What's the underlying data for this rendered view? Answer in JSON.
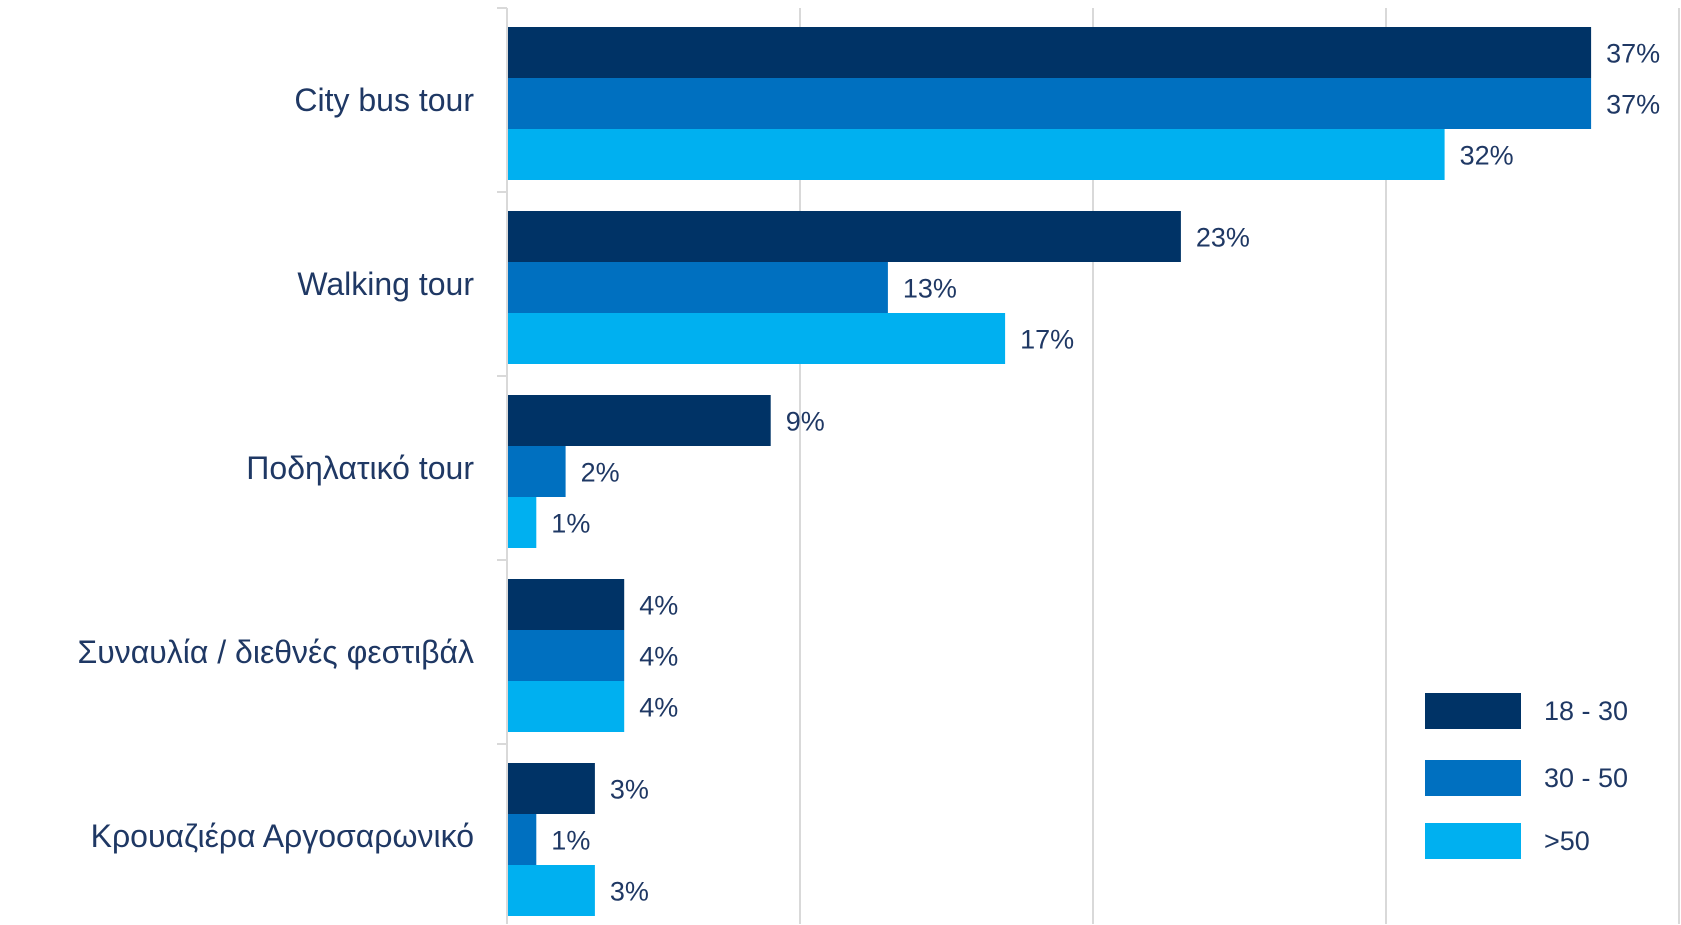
{
  "chart_data": {
    "type": "bar",
    "orientation": "horizontal",
    "categories": [
      "City bus tour",
      "Walking tour",
      "Ποδηλατικό tour",
      "Συναυλία / διεθνές φεστιβάλ",
      "Κρουαζιέρα Αργοσαρωνικό"
    ],
    "series": [
      {
        "name": "18 - 30",
        "color": "#003366",
        "values": [
          37,
          23,
          9,
          4,
          3
        ],
        "labels": [
          "37%",
          "23%",
          "9%",
          "4%",
          "3%"
        ]
      },
      {
        "name": "30 - 50",
        "color": "#0070c0",
        "values": [
          37,
          13,
          2,
          4,
          1
        ],
        "labels": [
          "37%",
          "13%",
          "2%",
          "4%",
          "1%"
        ]
      },
      {
        "name": ">50",
        "color": "#00b0f0",
        "values": [
          32,
          17,
          1,
          4,
          3
        ],
        "labels": [
          "32%",
          "17%",
          "1%",
          "4%",
          "3%"
        ]
      }
    ],
    "xlim": [
      0,
      40
    ],
    "grid": true,
    "legend": "bottom-right",
    "title": "",
    "xlabel": "",
    "ylabel": ""
  }
}
